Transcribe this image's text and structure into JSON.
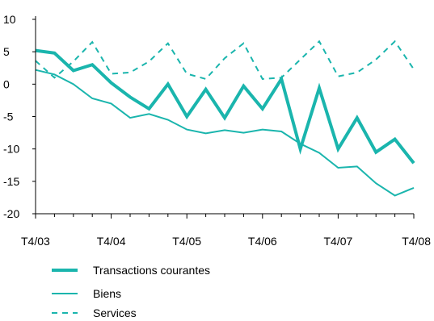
{
  "chart_data": {
    "type": "line",
    "title": "",
    "xlabel": "",
    "ylabel": "",
    "ylim": [
      -20,
      10
    ],
    "yticks": [
      10,
      5,
      0,
      -5,
      -10,
      -15,
      -20
    ],
    "grid": false,
    "legend_position": "bottom-left",
    "x": [
      "T4/03",
      "T1/04",
      "T2/04",
      "T3/04",
      "T4/04",
      "T1/05",
      "T2/05",
      "T3/05",
      "T4/05",
      "T1/06",
      "T2/06",
      "T3/06",
      "T4/06",
      "T1/07",
      "T2/07",
      "T3/07",
      "T4/07",
      "T1/08",
      "T2/08",
      "T3/08",
      "T4/08"
    ],
    "xtick_labels": [
      "T4/03",
      "T4/04",
      "T4/05",
      "T4/06",
      "T4/07",
      "T4/08"
    ],
    "series": [
      {
        "name": "Transactions courantes",
        "color": "#1ab5ad",
        "style": "thick",
        "values": [
          5.2,
          4.8,
          2.1,
          3.0,
          0.2,
          -2.0,
          -3.8,
          0.0,
          -5.0,
          -0.8,
          -5.2,
          -0.3,
          -3.8,
          0.8,
          -10.0,
          -0.6,
          -10.0,
          -5.2,
          -10.5,
          -8.5,
          -12.2
        ]
      },
      {
        "name": "Biens",
        "color": "#1ab5ad",
        "style": "solid",
        "values": [
          2.2,
          1.5,
          0.0,
          -2.2,
          -3.0,
          -5.2,
          -4.6,
          -5.5,
          -7.0,
          -7.6,
          -7.1,
          -7.5,
          -7.0,
          -7.3,
          -9.2,
          -10.6,
          -12.9,
          -12.7,
          -15.3,
          -17.2,
          -16.0
        ]
      },
      {
        "name": "Services",
        "color": "#1ab5ad",
        "style": "dashed",
        "values": [
          3.6,
          1.0,
          3.5,
          6.5,
          1.6,
          1.8,
          3.5,
          6.3,
          1.6,
          0.8,
          4.0,
          6.3,
          0.8,
          1.0,
          3.8,
          6.6,
          1.2,
          1.8,
          3.8,
          6.6,
          2.3
        ]
      }
    ]
  }
}
